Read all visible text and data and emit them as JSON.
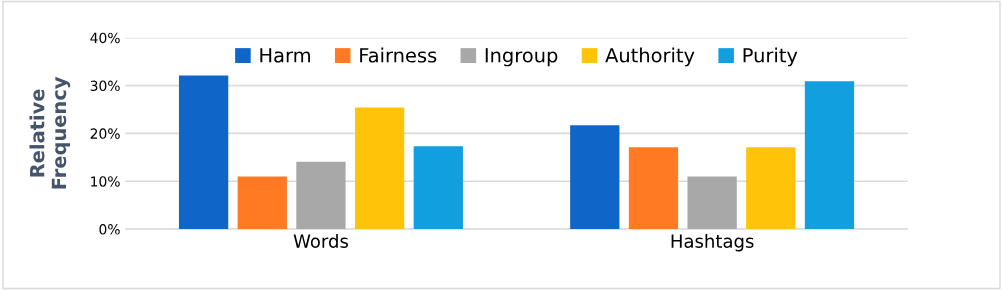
{
  "chart_data": {
    "type": "bar",
    "ylabel": "Relative Frequency",
    "categories": [
      "Words",
      "Hashtags"
    ],
    "series": [
      {
        "name": "Harm",
        "color": "#0f66c8",
        "values": [
          32.1,
          21.7
        ]
      },
      {
        "name": "Fairness",
        "color": "#ff7a22",
        "values": [
          11.0,
          17.1
        ]
      },
      {
        "name": "Ingroup",
        "color": "#a8a8a8",
        "values": [
          14.1,
          11.0
        ]
      },
      {
        "name": "Authority",
        "color": "#ffc409",
        "values": [
          25.4,
          17.1
        ]
      },
      {
        "name": "Purity",
        "color": "#119fdf",
        "values": [
          17.3,
          30.9
        ]
      }
    ],
    "ylim": [
      0,
      40
    ],
    "yticks": [
      {
        "value": 0,
        "label": "0%"
      },
      {
        "value": 10,
        "label": "10%"
      },
      {
        "value": 20,
        "label": "20%"
      },
      {
        "value": 30,
        "label": "30%"
      },
      {
        "value": 40,
        "label": "40%"
      }
    ],
    "grid": "y",
    "legend": "top"
  }
}
